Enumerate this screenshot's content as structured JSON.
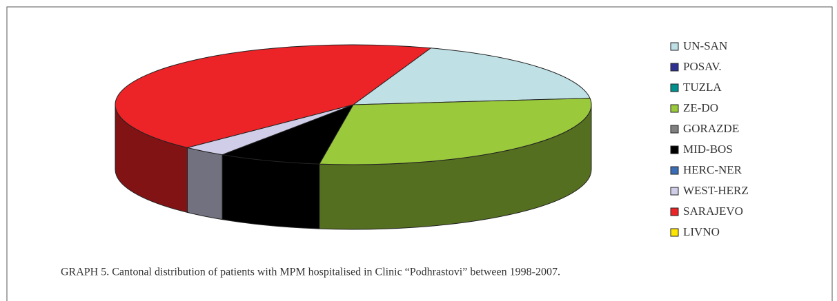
{
  "chart_data": {
    "type": "pie3d",
    "caption": "GRAPH 5. Cantonal distribution of patients with MPM hospitalised in Clinic “Podhrastovi” between 1998-2007.",
    "categories": [
      "UN-SAN",
      "POSAV.",
      "TUZLA",
      "ZE-DO",
      "GORAZDE",
      "MID-BOS",
      "HERC-NER",
      "WEST-HERZ",
      "SARAJEVO",
      "LIVNO"
    ],
    "values": [
      18,
      0,
      0,
      29,
      0,
      7,
      0,
      3,
      43,
      0
    ],
    "colors": [
      "#bfe0e4",
      "#2e3192",
      "#00918f",
      "#9ac93c",
      "#808080",
      "#000000",
      "#3a6db5",
      "#cfcde8",
      "#ec2327",
      "#ffe600"
    ],
    "legend": "right"
  }
}
